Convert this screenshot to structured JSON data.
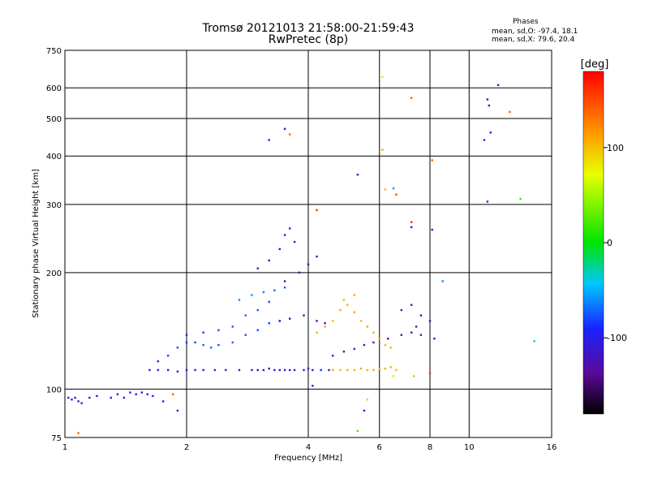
{
  "header": {
    "title_line1": "Tromsø 20121013 21:58:00-21:59:43",
    "title_line2": "RwPretec (8p)",
    "phases_title": "Phases",
    "phases_o": "mean, sd,O: -97.4, 18.1",
    "phases_x": "mean, sd,X:  79.6, 20.4"
  },
  "colorbar": {
    "label": "[deg]",
    "ticks": [
      {
        "value": 100,
        "label": "100"
      },
      {
        "value": 0,
        "label": "0"
      },
      {
        "value": -100,
        "label": "-100"
      }
    ],
    "range": [
      -180,
      180
    ]
  },
  "chart_data": {
    "type": "scatter",
    "title": "Tromsø 20121013 21:58:00-21:59:43",
    "subtitle": "RwPretec (8p)",
    "xlabel": "Frequency [MHz]",
    "ylabel": "Stationary phase Virtual Height [km]",
    "xscale": "log",
    "yscale": "log",
    "xlim": [
      1,
      16
    ],
    "ylim": [
      75,
      750
    ],
    "xticks": [
      {
        "value": 1,
        "label": "1"
      },
      {
        "value": 2,
        "label": "2"
      },
      {
        "value": 4,
        "label": "4"
      },
      {
        "value": 6,
        "label": "6"
      },
      {
        "value": 8,
        "label": "8"
      },
      {
        "value": 10,
        "label": "10"
      },
      {
        "value": 16,
        "label": "16"
      }
    ],
    "xgrid": [
      2,
      4,
      6,
      8,
      10
    ],
    "yticks": [
      {
        "value": 75,
        "label": "75"
      },
      {
        "value": 100,
        "label": "100"
      },
      {
        "value": 200,
        "label": "200"
      },
      {
        "value": 300,
        "label": "300"
      },
      {
        "value": 400,
        "label": "400"
      },
      {
        "value": 500,
        "label": "500"
      },
      {
        "value": 600,
        "label": "600"
      },
      {
        "value": 750,
        "label": "750"
      }
    ],
    "ygrid": [
      100,
      200,
      300,
      400,
      500,
      600
    ],
    "grid": true,
    "color_dimension": "phase [deg]",
    "points": [
      [
        1.02,
        95,
        -100
      ],
      [
        1.04,
        94,
        -105
      ],
      [
        1.06,
        95,
        -100
      ],
      [
        1.08,
        93,
        -110
      ],
      [
        1.1,
        92,
        -100
      ],
      [
        1.15,
        95,
        -110
      ],
      [
        1.2,
        96,
        -100
      ],
      [
        1.3,
        95,
        -105
      ],
      [
        1.35,
        97,
        -100
      ],
      [
        1.4,
        95,
        -110
      ],
      [
        1.45,
        98,
        -100
      ],
      [
        1.5,
        97,
        -105
      ],
      [
        1.55,
        98,
        -100
      ],
      [
        1.6,
        97,
        -95
      ],
      [
        1.65,
        96,
        -100
      ],
      [
        1.08,
        77,
        140
      ],
      [
        1.75,
        93,
        -100
      ],
      [
        1.85,
        97,
        140
      ],
      [
        1.62,
        112,
        -100
      ],
      [
        1.7,
        112,
        -110
      ],
      [
        1.8,
        112,
        -100
      ],
      [
        1.9,
        111,
        -105
      ],
      [
        2.0,
        112,
        -100
      ],
      [
        2.1,
        112,
        -110
      ],
      [
        2.2,
        112,
        -100
      ],
      [
        2.35,
        112,
        -105
      ],
      [
        2.5,
        112,
        -100
      ],
      [
        2.7,
        112,
        -110
      ],
      [
        2.9,
        112,
        -100
      ],
      [
        3.1,
        112,
        -105
      ],
      [
        3.3,
        112,
        -110
      ],
      [
        3.5,
        112,
        -100
      ],
      [
        3.7,
        112,
        -105
      ],
      [
        3.9,
        112,
        -100
      ],
      [
        4.1,
        112,
        -110
      ],
      [
        4.3,
        112,
        -100
      ],
      [
        4.5,
        112,
        -105
      ],
      [
        3.0,
        112,
        -130
      ],
      [
        3.2,
        113,
        -130
      ],
      [
        3.4,
        112,
        -140
      ],
      [
        3.6,
        112,
        -130
      ],
      [
        4.0,
        113,
        -130
      ],
      [
        4.6,
        112,
        110
      ],
      [
        4.8,
        112,
        105
      ],
      [
        5.0,
        112,
        110
      ],
      [
        5.2,
        112,
        100
      ],
      [
        5.4,
        113,
        110
      ],
      [
        5.6,
        112,
        105
      ],
      [
        5.8,
        112,
        110
      ],
      [
        6.0,
        113,
        100
      ],
      [
        6.2,
        113,
        110
      ],
      [
        6.4,
        114,
        105
      ],
      [
        6.6,
        112,
        100
      ],
      [
        1.7,
        118,
        -90
      ],
      [
        1.8,
        122,
        -80
      ],
      [
        1.9,
        128,
        -80
      ],
      [
        2.0,
        132,
        -85
      ],
      [
        2.1,
        132,
        -80
      ],
      [
        2.2,
        130,
        -75
      ],
      [
        2.3,
        128,
        -70
      ],
      [
        2.4,
        130,
        -80
      ],
      [
        2.6,
        132,
        -70
      ],
      [
        2.8,
        138,
        -75
      ],
      [
        3.0,
        142,
        -80
      ],
      [
        3.2,
        148,
        -85
      ],
      [
        3.4,
        150,
        -80
      ],
      [
        2.0,
        138,
        -90
      ],
      [
        2.2,
        140,
        -85
      ],
      [
        2.4,
        142,
        -80
      ],
      [
        2.6,
        145,
        -75
      ],
      [
        2.8,
        155,
        -70
      ],
      [
        3.0,
        160,
        -75
      ],
      [
        3.2,
        168,
        -80
      ],
      [
        2.7,
        170,
        -60
      ],
      [
        2.9,
        175,
        -60
      ],
      [
        3.1,
        178,
        -65
      ],
      [
        3.3,
        180,
        -70
      ],
      [
        3.5,
        183,
        -75
      ],
      [
        3.0,
        205,
        -110
      ],
      [
        3.2,
        215,
        -120
      ],
      [
        3.4,
        230,
        -110
      ],
      [
        3.5,
        250,
        -100
      ],
      [
        3.6,
        260,
        -105
      ],
      [
        3.7,
        240,
        -110
      ],
      [
        3.5,
        190,
        -120
      ],
      [
        3.8,
        200,
        -125
      ],
      [
        4.0,
        210,
        -120
      ],
      [
        4.2,
        220,
        -130
      ],
      [
        3.4,
        150,
        -130
      ],
      [
        3.6,
        152,
        -125
      ],
      [
        3.9,
        155,
        -130
      ],
      [
        4.2,
        150,
        -120
      ],
      [
        4.4,
        148,
        -125
      ],
      [
        4.2,
        140,
        105
      ],
      [
        4.4,
        145,
        110
      ],
      [
        4.6,
        150,
        100
      ],
      [
        4.8,
        160,
        110
      ],
      [
        5.0,
        165,
        105
      ],
      [
        5.2,
        158,
        110
      ],
      [
        5.4,
        150,
        100
      ],
      [
        5.6,
        145,
        110
      ],
      [
        5.8,
        140,
        105
      ],
      [
        6.0,
        135,
        110
      ],
      [
        6.2,
        130,
        100
      ],
      [
        6.4,
        128,
        105
      ],
      [
        4.9,
        170,
        100
      ],
      [
        5.2,
        175,
        110
      ],
      [
        4.6,
        122,
        -110
      ],
      [
        4.9,
        125,
        -120
      ],
      [
        5.2,
        127,
        -115
      ],
      [
        5.5,
        130,
        -120
      ],
      [
        5.8,
        132,
        -125
      ],
      [
        6.3,
        135,
        -130
      ],
      [
        6.8,
        138,
        -125
      ],
      [
        7.2,
        140,
        -130
      ],
      [
        7.6,
        138,
        -125
      ],
      [
        8.2,
        135,
        -120
      ],
      [
        6.8,
        160,
        -120
      ],
      [
        7.2,
        165,
        -110
      ],
      [
        7.6,
        155,
        -120
      ],
      [
        8.0,
        150,
        -130
      ],
      [
        7.4,
        145,
        -125
      ],
      [
        3.5,
        470,
        -120
      ],
      [
        3.6,
        455,
        140
      ],
      [
        3.2,
        440,
        -90
      ],
      [
        5.3,
        358,
        -100
      ],
      [
        6.1,
        415,
        110
      ],
      [
        6.2,
        328,
        100
      ],
      [
        6.5,
        330,
        -60
      ],
      [
        6.6,
        318,
        150
      ],
      [
        7.2,
        270,
        160
      ],
      [
        7.2,
        262,
        -90
      ],
      [
        8.1,
        258,
        -100
      ],
      [
        6.1,
        640,
        60
      ],
      [
        7.2,
        565,
        140
      ],
      [
        8.1,
        390,
        140
      ],
      [
        8.6,
        190,
        -60
      ],
      [
        10.9,
        440,
        -110
      ],
      [
        11.1,
        560,
        -100
      ],
      [
        11.2,
        540,
        -120
      ],
      [
        11.3,
        460,
        -110
      ],
      [
        11.8,
        610,
        -100
      ],
      [
        12.6,
        520,
        140
      ],
      [
        13.4,
        310,
        20
      ],
      [
        11.1,
        305,
        -90
      ],
      [
        14.5,
        133,
        -40
      ],
      [
        4.2,
        290,
        160
      ],
      [
        4.1,
        102,
        -100
      ],
      [
        5.3,
        78,
        20
      ],
      [
        5.6,
        94,
        50
      ],
      [
        5.5,
        88,
        -100
      ],
      [
        6.5,
        108,
        60
      ],
      [
        7.3,
        108,
        40
      ],
      [
        8.0,
        110,
        160
      ],
      [
        1.9,
        88,
        -100
      ]
    ]
  }
}
